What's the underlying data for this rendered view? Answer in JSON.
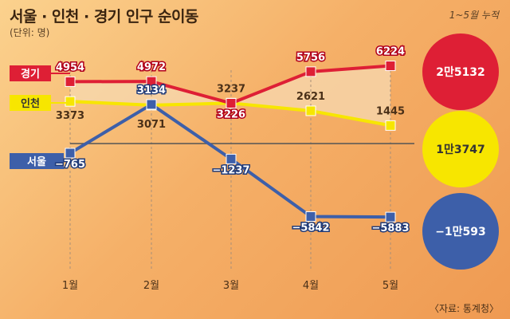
{
  "title": "서울 · 인천 · 경기 인구 순이동",
  "unit": "(단위: 명)",
  "cumulative_note": "1~5월 누적",
  "source": "〈자료: 통계청〉",
  "colors": {
    "gyeonggi": "#de1f35",
    "incheon": "#f7e600",
    "seoul": "#3d5fa9",
    "area_fill": "#f7d9b2",
    "axis": "#555555"
  },
  "chart_data": {
    "type": "line",
    "categories": [
      "1월",
      "2월",
      "3월",
      "4월",
      "5월"
    ],
    "series": [
      {
        "key": "gyeonggi",
        "name": "경기",
        "values": [
          4954,
          4972,
          3226,
          5756,
          6224
        ],
        "total": "2만5132"
      },
      {
        "key": "incheon",
        "name": "인천",
        "values": [
          3373,
          3071,
          3237,
          2621,
          1445
        ],
        "total": "1만3747"
      },
      {
        "key": "seoul",
        "name": "서울",
        "values": [
          -765,
          3134,
          -1237,
          -5842,
          -5883
        ],
        "total": "−1만593"
      }
    ],
    "value_labels": {
      "gyeonggi": [
        "4954",
        "4972",
        "3226",
        "5756",
        "6224"
      ],
      "incheon": [
        "3373",
        "3071",
        "3237",
        "2621",
        "1445"
      ],
      "seoul": [
        "−765",
        "3134",
        "−1237",
        "−5842",
        "−5883"
      ]
    }
  }
}
